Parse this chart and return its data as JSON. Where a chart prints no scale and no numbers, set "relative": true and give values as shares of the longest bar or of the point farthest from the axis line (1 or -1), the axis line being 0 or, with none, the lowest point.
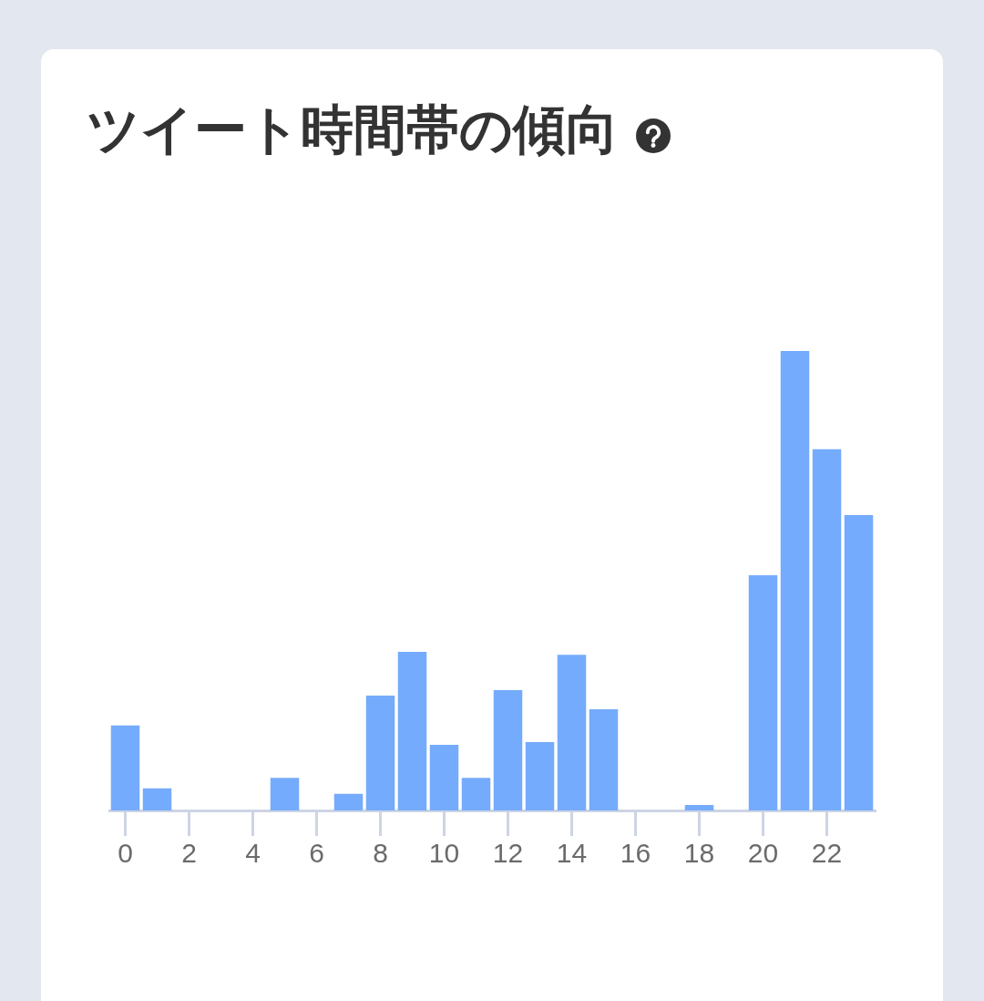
{
  "chart_data": {
    "type": "bar",
    "title": "ツイート時間帯の傾向",
    "x": [
      0,
      1,
      2,
      3,
      4,
      5,
      6,
      7,
      8,
      9,
      10,
      11,
      12,
      13,
      14,
      15,
      16,
      17,
      18,
      19,
      20,
      21,
      22,
      23
    ],
    "values": [
      0.185,
      0.048,
      0,
      0,
      0,
      0.071,
      0,
      0.036,
      0.25,
      0.345,
      0.143,
      0.071,
      0.262,
      0.149,
      0.339,
      0.22,
      0,
      0,
      0.012,
      0,
      0.512,
      1,
      0.786,
      0.643
    ],
    "color": "#75abfc",
    "relative": true,
    "xlim": [
      -0.5,
      23.5
    ],
    "xticks": [
      0,
      2,
      4,
      6,
      8,
      10,
      12,
      14,
      16,
      18,
      20,
      22
    ],
    "tick_labels": "x"
  }
}
